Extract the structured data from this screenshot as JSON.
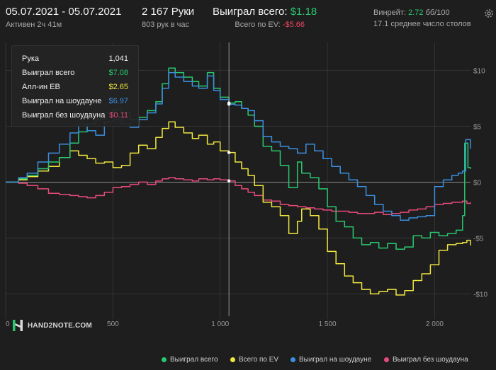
{
  "header": {
    "date_range": "05.07.2021 - 05.07.2021",
    "active_time": "Активен 2ч 41м",
    "hands_total": "2 167 Руки",
    "hands_per_hour": "803 рук в час",
    "won_total_label": "Выиграл всего:",
    "won_total_value": "$1.18",
    "ev_total_label": "Всего по EV:",
    "ev_total_value": "-$5.66",
    "winrate_label": "Винрейт:",
    "winrate_value": "2.72",
    "winrate_unit": "бб/100",
    "avg_tables": "17.1 среднее число столов"
  },
  "tooltip": {
    "rows": [
      {
        "label": "Рука",
        "value": "1,041"
      },
      {
        "label": "Выиграл всего",
        "value": "$7.08"
      },
      {
        "label": "Алл-ин EB",
        "value": "$2.65"
      },
      {
        "label": "Выиграл на шоудауне",
        "value": "$6.97"
      },
      {
        "label": "Выиграл без шоудауна",
        "value": "$0.11"
      }
    ]
  },
  "logo": {
    "text": "HAND2NOTE.COM"
  },
  "colors": {
    "won_total": "#28c86e",
    "ev": "#f0e640",
    "showdown": "#3b8fe0",
    "non_showdown": "#e84a7a",
    "header_green": "#28c86e",
    "header_red": "#e8455e"
  },
  "chart_data": {
    "type": "line",
    "x_ticks": [
      "0",
      "500",
      "1 000",
      "1 500",
      "2 000"
    ],
    "y_ticks": [
      "$10",
      "$5",
      "$0",
      "-$5",
      "-$10"
    ],
    "xlim": [
      0,
      2167
    ],
    "ylim": [
      -12,
      12.5
    ],
    "cursor_x": 1041,
    "series": [
      {
        "name": "Выиграл всего",
        "color_key": "won_total",
        "points": [
          [
            0,
            0
          ],
          [
            60,
            0.3
          ],
          [
            100,
            0.6
          ],
          [
            150,
            1.2
          ],
          [
            200,
            1.8
          ],
          [
            250,
            2.2
          ],
          [
            300,
            3.5
          ],
          [
            340,
            4.5
          ],
          [
            380,
            5.2
          ],
          [
            420,
            5.6
          ],
          [
            460,
            6.2
          ],
          [
            500,
            6.5
          ],
          [
            540,
            6.2
          ],
          [
            580,
            5.6
          ],
          [
            620,
            5.8
          ],
          [
            660,
            6.4
          ],
          [
            700,
            7.2
          ],
          [
            730,
            8.8
          ],
          [
            760,
            10.2
          ],
          [
            790,
            9.8
          ],
          [
            830,
            9.4
          ],
          [
            870,
            9.0
          ],
          [
            900,
            8.6
          ],
          [
            940,
            9.8
          ],
          [
            970,
            8.4
          ],
          [
            1000,
            7.6
          ],
          [
            1041,
            7.08
          ],
          [
            1070,
            7.2
          ],
          [
            1100,
            6.6
          ],
          [
            1130,
            6.0
          ],
          [
            1160,
            5.0
          ],
          [
            1200,
            3.2
          ],
          [
            1240,
            2.8
          ],
          [
            1280,
            1.5
          ],
          [
            1320,
            -0.5
          ],
          [
            1360,
            1.8
          ],
          [
            1380,
            0.8
          ],
          [
            1420,
            0.4
          ],
          [
            1460,
            -0.6
          ],
          [
            1500,
            -2.2
          ],
          [
            1540,
            -3.5
          ],
          [
            1580,
            -4.0
          ],
          [
            1620,
            -5.0
          ],
          [
            1660,
            -5.6
          ],
          [
            1700,
            -5.4
          ],
          [
            1740,
            -5.9
          ],
          [
            1780,
            -5.5
          ],
          [
            1820,
            -6.0
          ],
          [
            1860,
            -5.8
          ],
          [
            1900,
            -4.8
          ],
          [
            1940,
            -5.0
          ],
          [
            1980,
            -4.5
          ],
          [
            2020,
            -4.8
          ],
          [
            2060,
            -4.6
          ],
          [
            2100,
            -4.3
          ],
          [
            2130,
            -3.0
          ],
          [
            2140,
            3.5
          ],
          [
            2155,
            1.3
          ],
          [
            2167,
            1.18
          ]
        ]
      },
      {
        "name": "Всего по EV",
        "color_key": "ev",
        "points": [
          [
            0,
            0
          ],
          [
            60,
            0.2
          ],
          [
            100,
            0.5
          ],
          [
            150,
            1.0
          ],
          [
            200,
            1.4
          ],
          [
            250,
            2.2
          ],
          [
            300,
            2.8
          ],
          [
            340,
            2.4
          ],
          [
            380,
            2.1
          ],
          [
            420,
            1.7
          ],
          [
            460,
            1.8
          ],
          [
            500,
            1.3
          ],
          [
            540,
            1.5
          ],
          [
            580,
            2.6
          ],
          [
            620,
            3.3
          ],
          [
            660,
            3.0
          ],
          [
            700,
            4.0
          ],
          [
            730,
            4.8
          ],
          [
            760,
            5.4
          ],
          [
            790,
            4.9
          ],
          [
            830,
            4.4
          ],
          [
            870,
            3.9
          ],
          [
            900,
            4.2
          ],
          [
            940,
            3.4
          ],
          [
            970,
            3.6
          ],
          [
            1000,
            2.8
          ],
          [
            1041,
            2.65
          ],
          [
            1070,
            1.8
          ],
          [
            1100,
            1.2
          ],
          [
            1130,
            0.6
          ],
          [
            1160,
            -0.3
          ],
          [
            1200,
            -1.8
          ],
          [
            1240,
            -2.2
          ],
          [
            1280,
            -3.0
          ],
          [
            1320,
            -4.6
          ],
          [
            1360,
            -3.5
          ],
          [
            1380,
            -2.4
          ],
          [
            1420,
            -3.0
          ],
          [
            1460,
            -4.2
          ],
          [
            1500,
            -6.2
          ],
          [
            1540,
            -7.3
          ],
          [
            1580,
            -8.4
          ],
          [
            1620,
            -9.0
          ],
          [
            1660,
            -9.6
          ],
          [
            1700,
            -10.0
          ],
          [
            1740,
            -9.8
          ],
          [
            1780,
            -9.6
          ],
          [
            1820,
            -10.1
          ],
          [
            1860,
            -9.7
          ],
          [
            1900,
            -8.8
          ],
          [
            1940,
            -8.2
          ],
          [
            1980,
            -7.4
          ],
          [
            2020,
            -6.1
          ],
          [
            2060,
            -5.6
          ],
          [
            2100,
            -5.5
          ],
          [
            2130,
            -5.4
          ],
          [
            2150,
            -5.2
          ],
          [
            2167,
            -5.66
          ]
        ]
      },
      {
        "name": "Выиграл на шоудауне",
        "color_key": "showdown",
        "points": [
          [
            0,
            0
          ],
          [
            60,
            0.4
          ],
          [
            100,
            0.8
          ],
          [
            150,
            1.8
          ],
          [
            200,
            2.6
          ],
          [
            250,
            3.4
          ],
          [
            300,
            4.4
          ],
          [
            340,
            5.2
          ],
          [
            380,
            4.6
          ],
          [
            420,
            4.2
          ],
          [
            460,
            5.4
          ],
          [
            500,
            5.6
          ],
          [
            540,
            5.2
          ],
          [
            580,
            4.9
          ],
          [
            620,
            5.6
          ],
          [
            660,
            6.2
          ],
          [
            700,
            7.0
          ],
          [
            730,
            8.4
          ],
          [
            760,
            9.8
          ],
          [
            790,
            9.4
          ],
          [
            830,
            9.0
          ],
          [
            870,
            8.6
          ],
          [
            900,
            8.4
          ],
          [
            940,
            9.5
          ],
          [
            970,
            8.2
          ],
          [
            1000,
            7.4
          ],
          [
            1041,
            6.97
          ],
          [
            1070,
            6.9
          ],
          [
            1100,
            6.6
          ],
          [
            1130,
            6.4
          ],
          [
            1160,
            5.5
          ],
          [
            1200,
            4.1
          ],
          [
            1240,
            3.6
          ],
          [
            1280,
            3.2
          ],
          [
            1320,
            3.0
          ],
          [
            1360,
            2.6
          ],
          [
            1400,
            3.4
          ],
          [
            1440,
            2.8
          ],
          [
            1480,
            2.1
          ],
          [
            1520,
            1.4
          ],
          [
            1560,
            0.8
          ],
          [
            1600,
            0.2
          ],
          [
            1640,
            -0.4
          ],
          [
            1680,
            -1.2
          ],
          [
            1720,
            -2.0
          ],
          [
            1760,
            -2.6
          ],
          [
            1800,
            -3.0
          ],
          [
            1840,
            -3.4
          ],
          [
            1880,
            -3.2
          ],
          [
            1920,
            -3.1
          ],
          [
            1960,
            -3.0
          ],
          [
            2000,
            -0.4
          ],
          [
            2040,
            0.2
          ],
          [
            2080,
            0.6
          ],
          [
            2110,
            0.8
          ],
          [
            2130,
            1.0
          ],
          [
            2145,
            3.8
          ],
          [
            2167,
            3.0
          ]
        ]
      },
      {
        "name": "Выиграл без шоудауна",
        "color_key": "non_showdown",
        "points": [
          [
            0,
            0
          ],
          [
            60,
            -0.1
          ],
          [
            100,
            -0.3
          ],
          [
            150,
            -0.6
          ],
          [
            200,
            -1.0
          ],
          [
            250,
            -1.1
          ],
          [
            300,
            -1.2
          ],
          [
            340,
            -1.3
          ],
          [
            380,
            -1.4
          ],
          [
            420,
            -1.2
          ],
          [
            460,
            -0.9
          ],
          [
            500,
            -0.5
          ],
          [
            540,
            -0.4
          ],
          [
            580,
            -0.2
          ],
          [
            620,
            0.0
          ],
          [
            660,
            -0.2
          ],
          [
            700,
            0.1
          ],
          [
            730,
            0.3
          ],
          [
            760,
            0.4
          ],
          [
            790,
            0.3
          ],
          [
            830,
            0.2
          ],
          [
            870,
            0.1
          ],
          [
            900,
            0.3
          ],
          [
            940,
            0.2
          ],
          [
            970,
            0.3
          ],
          [
            1000,
            0.2
          ],
          [
            1041,
            0.11
          ],
          [
            1070,
            -0.3
          ],
          [
            1100,
            -0.6
          ],
          [
            1130,
            -0.9
          ],
          [
            1160,
            -1.2
          ],
          [
            1200,
            -1.6
          ],
          [
            1240,
            -1.7
          ],
          [
            1280,
            -2.0
          ],
          [
            1320,
            -2.1
          ],
          [
            1360,
            -2.2
          ],
          [
            1400,
            -2.3
          ],
          [
            1440,
            -2.4
          ],
          [
            1480,
            -2.5
          ],
          [
            1520,
            -2.6
          ],
          [
            1560,
            -2.6
          ],
          [
            1600,
            -2.7
          ],
          [
            1640,
            -2.8
          ],
          [
            1680,
            -2.8
          ],
          [
            1720,
            -2.7
          ],
          [
            1760,
            -2.9
          ],
          [
            1800,
            -2.8
          ],
          [
            1840,
            -2.7
          ],
          [
            1880,
            -2.5
          ],
          [
            1920,
            -2.4
          ],
          [
            1960,
            -2.2
          ],
          [
            2000,
            -2.0
          ],
          [
            2040,
            -1.9
          ],
          [
            2080,
            -1.8
          ],
          [
            2110,
            -1.8
          ],
          [
            2130,
            -1.7
          ],
          [
            2150,
            -1.9
          ],
          [
            2167,
            -1.8
          ]
        ]
      }
    ]
  }
}
